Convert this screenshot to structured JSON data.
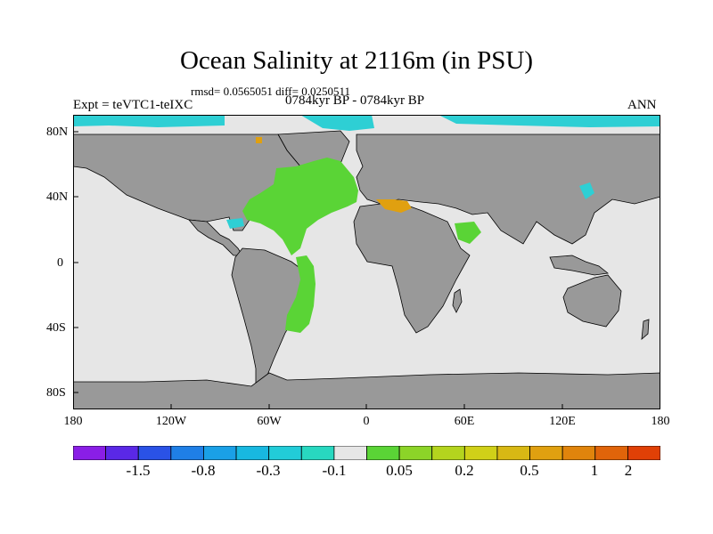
{
  "title": "Ocean Salinity at 2116m (in PSU)",
  "stats_line": "rmsd= 0.0565051 diff= 0.0250511",
  "period": "0784kyr BP - 0784kyr BP",
  "experiment": "Expt = teVTC1-teIXC",
  "season": "ANN",
  "axes": {
    "y_ticks": [
      "80N",
      "40N",
      "0",
      "40S",
      "80S"
    ],
    "x_ticks": [
      "180",
      "120W",
      "60W",
      "0",
      "60E",
      "120E",
      "180"
    ]
  },
  "colors": {
    "land": "#999999",
    "ocean_neutral": "#e6e6e6",
    "positive_anomaly": "#5ad436",
    "negative_anomaly": "#2ecfd4",
    "orange": "#e0a010"
  },
  "colorbar": {
    "colors": [
      "#8a1ee6",
      "#5a28e6",
      "#2a52e6",
      "#1f7fe6",
      "#1aa0e6",
      "#18b8e0",
      "#22ccd8",
      "#28d8c0",
      "#e6e6e6",
      "#5ad436",
      "#8cd428",
      "#b4d41e",
      "#d0d018",
      "#d8b814",
      "#e0a010",
      "#e0840c",
      "#e0640a",
      "#e04006"
    ],
    "labels": [
      "-1.5",
      "-0.8",
      "-0.3",
      "-0.1",
      "0.05",
      "0.2",
      "0.5",
      "1",
      "2"
    ]
  }
}
